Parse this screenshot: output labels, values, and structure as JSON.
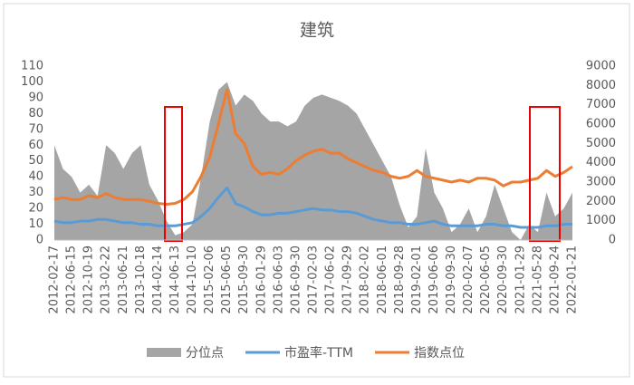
{
  "chart_data": {
    "type": "line",
    "title": "建筑",
    "categories": [
      "2012-02-17",
      null,
      "2012-06-15",
      null,
      "2012-10-19",
      null,
      "2013-02-22",
      null,
      "2013-06-21",
      null,
      "2013-10-18",
      null,
      "2014-02-14",
      null,
      "2014-06-13",
      null,
      "2014-10-10",
      null,
      "2015-02-06",
      null,
      "2015-06-05",
      null,
      "2015-09-30",
      null,
      "2016-01-29",
      null,
      "2016-06-03",
      null,
      "2016-09-30",
      null,
      "2017-02-03",
      null,
      "2017-06-02",
      null,
      "2017-09-29",
      null,
      "2018-02-02",
      null,
      "2018-06-01",
      null,
      "2018-09-28",
      null,
      "2019-02-01",
      null,
      "2019-06-06",
      null,
      "2019-09-30",
      null,
      "2020-02-07",
      null,
      "2020-06-05",
      null,
      "2020-09-30",
      null,
      "2021-01-29",
      null,
      "2021-05-28",
      null,
      "2021-09-24",
      null,
      "2022-01-21"
    ],
    "series": [
      {
        "name": "分位点",
        "type": "area",
        "color": "#a5a5a5",
        "values": [
          60,
          45,
          40,
          30,
          35,
          28,
          60,
          55,
          45,
          55,
          60,
          35,
          25,
          12,
          3,
          5,
          10,
          40,
          75,
          95,
          100,
          85,
          92,
          88,
          80,
          75,
          75,
          72,
          75,
          85,
          90,
          92,
          90,
          88,
          85,
          80,
          70,
          60,
          50,
          40,
          22,
          8,
          15,
          58,
          30,
          20,
          5,
          10,
          20,
          5,
          15,
          35,
          20,
          5,
          0,
          10,
          5,
          30,
          15,
          20,
          30
        ]
      },
      {
        "name": "市盈率-TTM",
        "color": "#5b9bd5",
        "values": [
          12,
          11,
          11,
          12,
          12,
          13,
          13,
          12,
          11,
          11,
          10,
          10,
          9,
          9,
          9,
          10,
          11,
          15,
          20,
          27,
          33,
          23,
          21,
          18,
          16,
          16,
          17,
          17,
          18,
          19,
          20,
          19,
          19,
          18,
          18,
          17,
          15,
          13,
          12,
          11,
          11,
          10,
          10,
          11,
          12,
          10,
          9,
          9,
          9,
          9,
          10,
          10,
          9,
          9,
          8,
          8,
          8,
          9,
          9,
          10,
          10
        ]
      },
      {
        "name": "指数点位",
        "color": "#ed7d31",
        "axis": "y2",
        "values": [
          2100,
          2200,
          2100,
          2100,
          2300,
          2200,
          2400,
          2200,
          2100,
          2100,
          2100,
          2000,
          1900,
          1850,
          1900,
          2100,
          2500,
          3300,
          4300,
          6000,
          7800,
          5500,
          5000,
          3800,
          3400,
          3500,
          3400,
          3700,
          4100,
          4400,
          4600,
          4700,
          4500,
          4500,
          4200,
          4000,
          3800,
          3600,
          3500,
          3300,
          3200,
          3300,
          3600,
          3300,
          3200,
          3100,
          3000,
          3100,
          3000,
          3200,
          3200,
          3100,
          2800,
          3000,
          3000,
          3100,
          3200,
          3600,
          3300,
          3500,
          3800
        ]
      }
    ],
    "ylim": [
      0,
      110
    ],
    "yticks": [
      0,
      10,
      20,
      30,
      40,
      50,
      60,
      70,
      80,
      90,
      100,
      110
    ],
    "y2lim": [
      0,
      9000
    ],
    "y2ticks": [
      0,
      1000,
      2000,
      3000,
      4000,
      5000,
      6000,
      7000,
      8000,
      9000
    ],
    "grid": false,
    "legend": "bottom"
  }
}
